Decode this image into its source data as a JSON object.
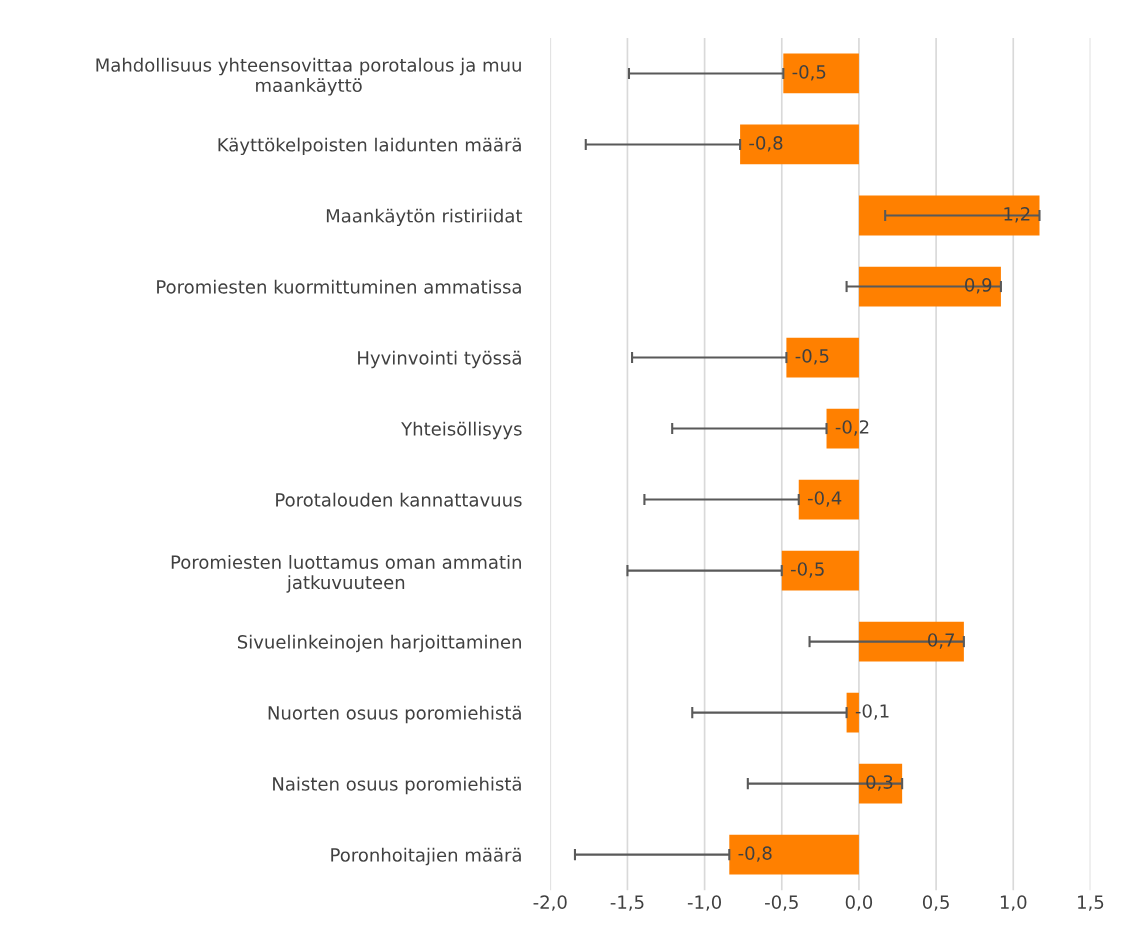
{
  "chart_data": {
    "type": "bar",
    "orientation": "horizontal",
    "categories": [
      "Mahdollisuus yhteensovittaa porotalous ja muu maankäyttö",
      "Käyttökelpoisten laidunten määrä",
      "Maankäytön ristiriidat",
      "Poromiesten kuormittuminen ammatissa",
      "Hyvinvointi työssä",
      "Yhteisöllisyys",
      "Porotalouden kannattavuus",
      "Poromiesten luottamus oman ammatin jatkuvuuteen",
      "Sivuelinkeinojen harjoittaminen",
      "Nuorten osuus poromiehistä",
      "Naisten osuus poromiehistä",
      "Poronhoitajien määrä"
    ],
    "values": [
      -0.49,
      -0.77,
      1.17,
      0.92,
      -0.47,
      -0.21,
      -0.39,
      -0.5,
      0.68,
      -0.08,
      0.28,
      -0.84
    ],
    "value_labels": [
      "-0,5",
      "-0,8",
      "1,2",
      "0,9",
      "-0,5",
      "-0,2",
      "-0,4",
      "-0,5",
      "0,7",
      "-0,1",
      "0,3",
      "-0,8"
    ],
    "errors": [
      [
        -1.49,
        -0.49
      ],
      [
        -1.77,
        -0.77
      ],
      [
        0.17,
        1.17
      ],
      [
        -0.08,
        0.92
      ],
      [
        -1.47,
        -0.47
      ],
      [
        -1.21,
        -0.21
      ],
      [
        -1.39,
        -0.39
      ],
      [
        -1.5,
        -0.5
      ],
      [
        -0.32,
        0.68
      ],
      [
        -1.08,
        -0.08
      ],
      [
        -0.72,
        0.28
      ],
      [
        -1.84,
        -0.84
      ]
    ],
    "color": "#ff8000",
    "xlim": [
      -2.0,
      1.5
    ],
    "xticks": [
      {
        "value": -2.0,
        "label": "-2,0"
      },
      {
        "value": -1.5,
        "label": "-1,5"
      },
      {
        "value": -1.0,
        "label": "-1,0"
      },
      {
        "value": -0.5,
        "label": "-0,5"
      },
      {
        "value": 0.0,
        "label": "0,0"
      },
      {
        "value": 0.5,
        "label": "0,5"
      },
      {
        "value": 1.0,
        "label": "1,0"
      },
      {
        "value": 1.5,
        "label": "1,5"
      }
    ],
    "grid": "x"
  }
}
